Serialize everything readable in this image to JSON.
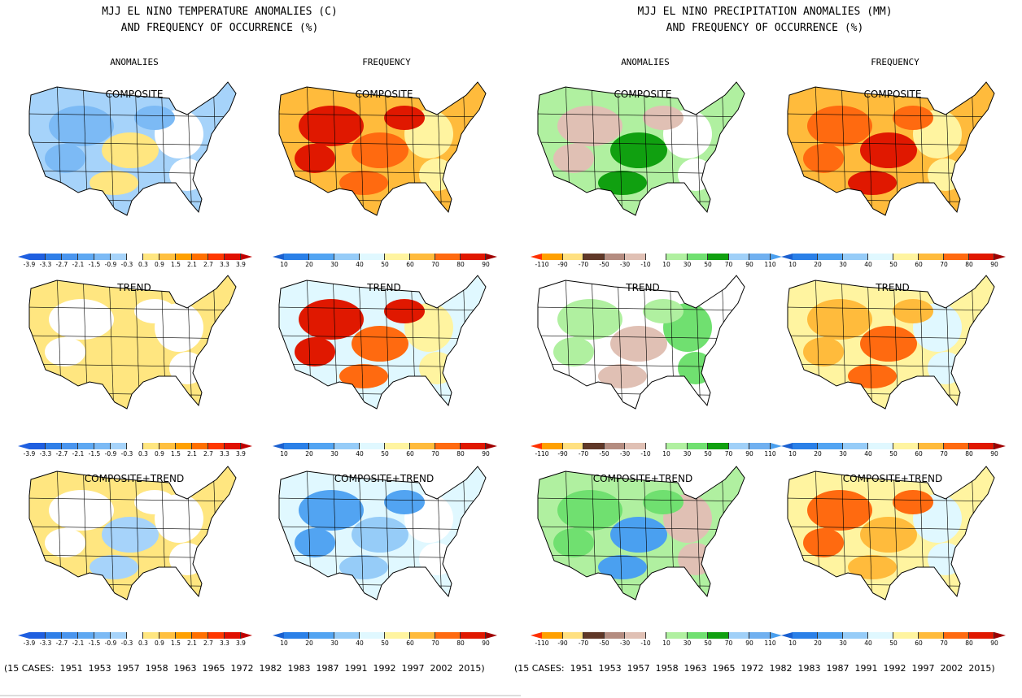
{
  "left": {
    "title": "MJJ EL NINO TEMPERATURE ANOMALIES (C)\nAND FREQUENCY OF OCCURRENCE (%)",
    "col_headers": [
      "ANOMALIES",
      "FREQUENCY"
    ]
  },
  "right": {
    "title": "MJJ EL NINO PRECIPITATION ANOMALIES (MM)\nAND FREQUENCY OF OCCURRENCE (%)",
    "col_headers": [
      "ANOMALIES",
      "FREQUENCY"
    ]
  },
  "row_labels": [
    "COMPOSITE",
    "TREND",
    "COMPOSITE+TREND"
  ],
  "colorbars": {
    "temp": {
      "ticks": [
        "-3.9",
        "-3.3",
        "-2.7",
        "-2.1",
        "-1.5",
        "-0.9",
        "-0.3",
        "0.3",
        "0.9",
        "1.5",
        "2.1",
        "2.7",
        "3.3",
        "3.9"
      ],
      "colors": [
        "#1f5fe0",
        "#2f7fe8",
        "#4a95ee",
        "#5ea8f2",
        "#7cbaf5",
        "#a6d3fa",
        "#ffffff",
        "#ffe680",
        "#ffc040",
        "#ffa000",
        "#ff7000",
        "#ff3800",
        "#e01000"
      ],
      "ends": [
        "#1f5fe0",
        "#c00000"
      ]
    },
    "freq": {
      "ticks": [
        "10",
        "20",
        "30",
        "40",
        "50",
        "60",
        "70",
        "80",
        "90"
      ],
      "colors": [
        "#2a80e8",
        "#52a4f2",
        "#96ccf8",
        "#e0f8ff",
        "#fff4a0",
        "#ffbb3c",
        "#ff6a10",
        "#e01800"
      ],
      "ends": [
        "#1a60d0",
        "#a00000"
      ]
    },
    "precip": {
      "ticks": [
        "-110",
        "-90",
        "-70",
        "-50",
        "-30",
        "-10",
        "10",
        "30",
        "50",
        "70",
        "90",
        "110"
      ],
      "colors": [
        "#ffa000",
        "#ffe080",
        "#603828",
        "#b48c80",
        "#e0c0b4",
        "#ffffff",
        "#b0f0a0",
        "#70e070",
        "#10a010",
        "#a0d0f8",
        "#70b0f0"
      ],
      "ends": [
        "#ff3000",
        "#4aa0f0"
      ]
    }
  },
  "panels": [
    {
      "row": 0,
      "col": 0,
      "bar": "temp",
      "base": "#a6d3fa",
      "patches": [
        "#7cbaf5",
        "#ffe680",
        "#ffffff"
      ]
    },
    {
      "row": 0,
      "col": 1,
      "bar": "freq",
      "base": "#ffbb3c",
      "patches": [
        "#e01800",
        "#ff6a10",
        "#fff4a0"
      ]
    },
    {
      "row": 0,
      "col": 2,
      "bar": "precip",
      "base": "#b0f0a0",
      "patches": [
        "#e0c0b4",
        "#10a010",
        "#ffffff"
      ]
    },
    {
      "row": 0,
      "col": 3,
      "bar": "freq",
      "base": "#ffbb3c",
      "patches": [
        "#ff6a10",
        "#e01800",
        "#fff4a0"
      ]
    },
    {
      "row": 1,
      "col": 0,
      "bar": "temp",
      "base": "#ffe680",
      "patches": [
        "#ffffff",
        "#ffe680",
        "#ffffff"
      ]
    },
    {
      "row": 1,
      "col": 1,
      "bar": "freq",
      "base": "#e0f8ff",
      "patches": [
        "#e01800",
        "#ff6a10",
        "#fff4a0"
      ]
    },
    {
      "row": 1,
      "col": 2,
      "bar": "precip",
      "base": "#ffffff",
      "patches": [
        "#b0f0a0",
        "#e0c0b4",
        "#70e070"
      ]
    },
    {
      "row": 1,
      "col": 3,
      "bar": "freq",
      "base": "#fff4a0",
      "patches": [
        "#ffbb3c",
        "#ff6a10",
        "#e0f8ff"
      ]
    },
    {
      "row": 2,
      "col": 0,
      "bar": "temp",
      "base": "#ffe680",
      "patches": [
        "#ffffff",
        "#a6d3fa",
        "#ffffff"
      ]
    },
    {
      "row": 2,
      "col": 1,
      "bar": "freq",
      "base": "#e0f8ff",
      "patches": [
        "#52a4f2",
        "#96ccf8",
        "#ffffff"
      ]
    },
    {
      "row": 2,
      "col": 2,
      "bar": "precip",
      "base": "#b0f0a0",
      "patches": [
        "#70e070",
        "#4aa0f0",
        "#e0c0b4"
      ]
    },
    {
      "row": 2,
      "col": 3,
      "bar": "freq",
      "base": "#fff4a0",
      "patches": [
        "#ff6a10",
        "#ffbb3c",
        "#e0f8ff"
      ]
    }
  ],
  "footer": "(15 CASES:  1951  1953  1957  1958  1963  1965  1972  1982  1983  1987  1991  1992  1997  2002  2015)"
}
